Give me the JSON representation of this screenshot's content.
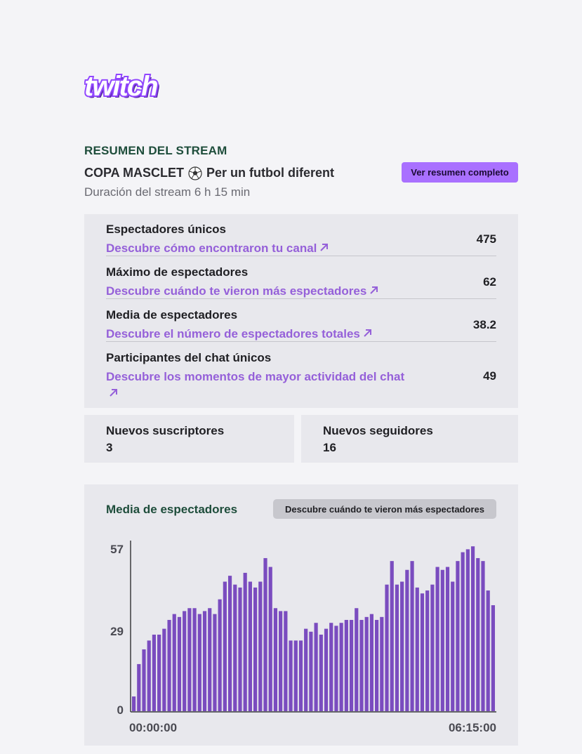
{
  "brand": {
    "logo_text": "twitch",
    "logo_color": "#9146ff"
  },
  "summary": {
    "section_title": "RESUMEN DEL STREAM",
    "stream_title_prefix": "COPA MASCLET",
    "stream_title_suffix": "Per un futbol diferent",
    "duration": "Duración del stream 6 h 15 min",
    "full_summary_button": "Ver resumen completo"
  },
  "stats": [
    {
      "label": "Espectadores únicos",
      "link": "Descubre cómo encontraron tu canal",
      "value": "475"
    },
    {
      "label": "Máximo de espectadores",
      "link": "Descubre cuándo te vieron más espectadores",
      "value": "62"
    },
    {
      "label": "Media de espectadores",
      "link": "Descubre el número de espectadores totales",
      "value": "38.2"
    },
    {
      "label": "Participantes del chat únicos",
      "link": "Descubre los momentos de mayor actividad del chat",
      "value": "49"
    }
  ],
  "cards": {
    "subscribers": {
      "label": "Nuevos suscriptores",
      "value": "3"
    },
    "followers": {
      "label": "Nuevos seguidores",
      "value": "16"
    }
  },
  "chart_section": {
    "title": "Media de espectadores",
    "button": "Descubre cuándo te vieron más espectadores"
  },
  "chart_data": {
    "type": "bar",
    "title": "Media de espectadores",
    "y_ticks": [
      "57",
      "29",
      "0"
    ],
    "ylim": [
      0,
      57
    ],
    "x_labels": [
      "00:00:00",
      "06:15:00"
    ],
    "bar_color": "#7a4cbf",
    "values": [
      5,
      16,
      21,
      24,
      26,
      26,
      28,
      31,
      33,
      32,
      34,
      35,
      35,
      33,
      34,
      35,
      33,
      38,
      44,
      46,
      43,
      42,
      47,
      44,
      42,
      44,
      52,
      49,
      35,
      34,
      34,
      24,
      24,
      24,
      28,
      27,
      30,
      26,
      28,
      30,
      29,
      30,
      31,
      31,
      35,
      31,
      32,
      33,
      31,
      32,
      43,
      51,
      43,
      44,
      48,
      51,
      42,
      40,
      41,
      43,
      49,
      48,
      49,
      44,
      51,
      54,
      55,
      56,
      52,
      51,
      41,
      36
    ],
    "colors": {
      "accent": "#a970ff",
      "bars": "#7a4cbf",
      "heading": "#1e4d3b",
      "link": "#9560d9"
    }
  }
}
